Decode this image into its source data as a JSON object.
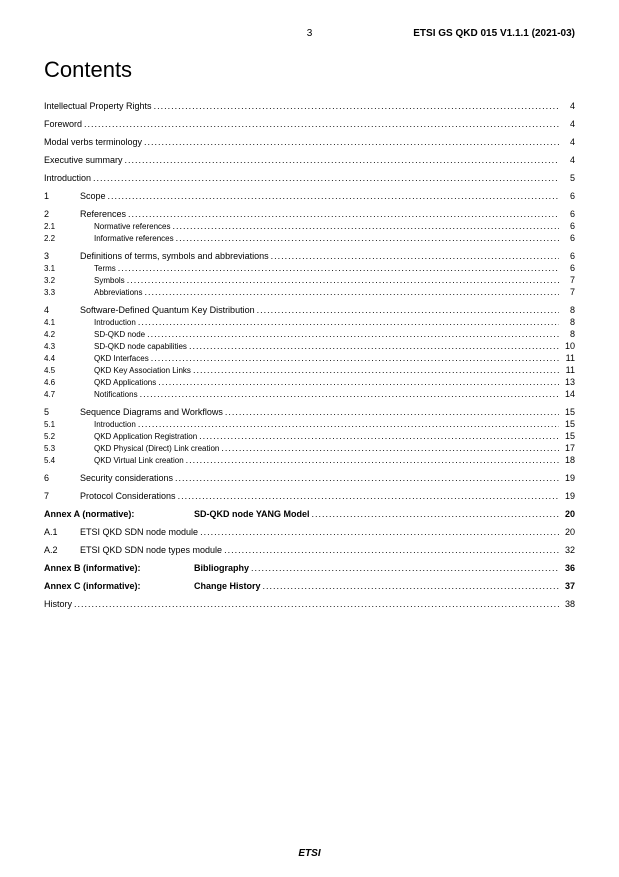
{
  "header": {
    "page_number": "3",
    "doc_id": "ETSI GS QKD 015 V1.1.1 (2021-03)"
  },
  "title": "Contents",
  "footer": "ETSI",
  "toc": [
    {
      "type": "line",
      "num": "",
      "numClass": "w0",
      "text": "Intellectual Property Rights",
      "textClass": "",
      "page": "4"
    },
    {
      "type": "gap"
    },
    {
      "type": "line",
      "num": "",
      "numClass": "w0",
      "text": "Foreword",
      "textClass": "",
      "page": "4"
    },
    {
      "type": "gap"
    },
    {
      "type": "line",
      "num": "",
      "numClass": "w0",
      "text": "Modal verbs terminology",
      "textClass": "",
      "page": "4"
    },
    {
      "type": "gap"
    },
    {
      "type": "line",
      "num": "",
      "numClass": "w0",
      "text": "Executive summary",
      "textClass": "",
      "page": "4"
    },
    {
      "type": "gap"
    },
    {
      "type": "line",
      "num": "",
      "numClass": "w0",
      "text": "Introduction",
      "textClass": "",
      "page": "5"
    },
    {
      "type": "gap"
    },
    {
      "type": "line",
      "num": "1",
      "numClass": "w1",
      "text": "Scope",
      "textClass": "",
      "page": "6"
    },
    {
      "type": "gap"
    },
    {
      "type": "line",
      "num": "2",
      "numClass": "w1",
      "text": "References",
      "textClass": "",
      "page": "6"
    },
    {
      "type": "line",
      "num": "2.1",
      "numClass": "w2",
      "text": "Normative references",
      "textClass": "indent",
      "page": "6"
    },
    {
      "type": "line",
      "num": "2.2",
      "numClass": "w2",
      "text": "Informative references",
      "textClass": "indent",
      "page": "6"
    },
    {
      "type": "gap"
    },
    {
      "type": "line",
      "num": "3",
      "numClass": "w1",
      "text": "Definitions of terms, symbols and abbreviations",
      "textClass": "",
      "page": "6"
    },
    {
      "type": "line",
      "num": "3.1",
      "numClass": "w2",
      "text": "Terms",
      "textClass": "indent",
      "page": "6"
    },
    {
      "type": "line",
      "num": "3.2",
      "numClass": "w2",
      "text": "Symbols",
      "textClass": "indent",
      "page": "7"
    },
    {
      "type": "line",
      "num": "3.3",
      "numClass": "w2",
      "text": "Abbreviations",
      "textClass": "indent",
      "page": "7"
    },
    {
      "type": "gap"
    },
    {
      "type": "line",
      "num": "4",
      "numClass": "w1",
      "text": "Software-Defined Quantum Key Distribution",
      "textClass": "",
      "page": "8"
    },
    {
      "type": "line",
      "num": "4.1",
      "numClass": "w2",
      "text": "Introduction",
      "textClass": "indent",
      "page": "8"
    },
    {
      "type": "line",
      "num": "4.2",
      "numClass": "w2",
      "text": "SD-QKD node",
      "textClass": "indent",
      "page": "8"
    },
    {
      "type": "line",
      "num": "4.3",
      "numClass": "w2",
      "text": "SD-QKD node capabilities",
      "textClass": "indent",
      "page": "10"
    },
    {
      "type": "line",
      "num": "4.4",
      "numClass": "w2",
      "text": "QKD Interfaces",
      "textClass": "indent",
      "page": "11"
    },
    {
      "type": "line",
      "num": "4.5",
      "numClass": "w2",
      "text": "QKD Key Association Links",
      "textClass": "indent",
      "page": "11"
    },
    {
      "type": "line",
      "num": "4.6",
      "numClass": "w2",
      "text": "QKD Applications",
      "textClass": "indent",
      "page": "13"
    },
    {
      "type": "line",
      "num": "4.7",
      "numClass": "w2",
      "text": "Notifications",
      "textClass": "indent",
      "page": "14"
    },
    {
      "type": "gap"
    },
    {
      "type": "line",
      "num": "5",
      "numClass": "w1",
      "text": "Sequence Diagrams and Workflows",
      "textClass": "",
      "page": "15"
    },
    {
      "type": "line",
      "num": "5.1",
      "numClass": "w2",
      "text": "Introduction",
      "textClass": "indent",
      "page": "15"
    },
    {
      "type": "line",
      "num": "5.2",
      "numClass": "w2",
      "text": "QKD Application Registration",
      "textClass": "indent",
      "page": "15"
    },
    {
      "type": "line",
      "num": "5.3",
      "numClass": "w2",
      "text": "QKD Physical (Direct) Link creation",
      "textClass": "indent",
      "page": "17"
    },
    {
      "type": "line",
      "num": "5.4",
      "numClass": "w2",
      "text": "QKD Virtual Link creation",
      "textClass": "indent",
      "page": "18"
    },
    {
      "type": "gap"
    },
    {
      "type": "line",
      "num": "6",
      "numClass": "w1",
      "text": "Security considerations",
      "textClass": "",
      "page": "19"
    },
    {
      "type": "gap"
    },
    {
      "type": "line",
      "num": "7",
      "numClass": "w1",
      "text": "Protocol Considerations",
      "textClass": "",
      "page": "19"
    },
    {
      "type": "gap"
    },
    {
      "type": "annex",
      "label": "Annex A (normative):",
      "title": "SD-QKD node YANG Model",
      "page": "20"
    },
    {
      "type": "gap"
    },
    {
      "type": "line",
      "num": "A.1",
      "numClass": "w1",
      "text": "ETSI QKD SDN node module",
      "textClass": "",
      "page": "20"
    },
    {
      "type": "gap"
    },
    {
      "type": "line",
      "num": "A.2",
      "numClass": "w1",
      "text": "ETSI QKD SDN node types module",
      "textClass": "",
      "page": "32"
    },
    {
      "type": "gap"
    },
    {
      "type": "annex",
      "label": "Annex B (informative):",
      "title": "Bibliography",
      "page": "36"
    },
    {
      "type": "gap"
    },
    {
      "type": "annex",
      "label": "Annex C (informative):",
      "title": "Change History",
      "page": "37"
    },
    {
      "type": "gap"
    },
    {
      "type": "line",
      "num": "",
      "numClass": "w0",
      "text": "History",
      "textClass": "",
      "page": "38"
    }
  ]
}
